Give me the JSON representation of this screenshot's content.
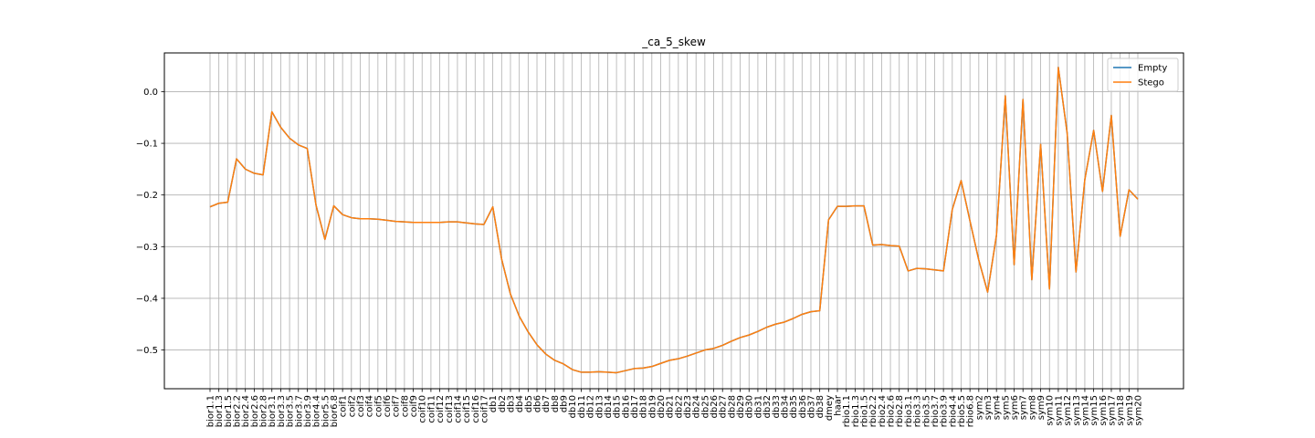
{
  "chart_data": {
    "type": "line",
    "title": "_ca_5_skew",
    "xlabel": "",
    "ylabel": "",
    "ylim": [
      -0.575,
      0.075
    ],
    "yticks": [
      0.0,
      -0.1,
      -0.2,
      -0.3,
      -0.4,
      -0.5
    ],
    "ytick_labels": [
      "0.0",
      "−0.1",
      "−0.2",
      "−0.3",
      "−0.4",
      "−0.5"
    ],
    "grid": true,
    "legend": "top-right",
    "categories": [
      "bior1.1",
      "bior1.3",
      "bior1.5",
      "bior2.2",
      "bior2.4",
      "bior2.6",
      "bior2.8",
      "bior3.1",
      "bior3.3",
      "bior3.5",
      "bior3.7",
      "bior3.9",
      "bior4.4",
      "bior5.5",
      "bior6.8",
      "coif1",
      "coif2",
      "coif3",
      "coif4",
      "coif5",
      "coif6",
      "coif7",
      "coif8",
      "coif9",
      "coif10",
      "coif11",
      "coif12",
      "coif13",
      "coif14",
      "coif15",
      "coif16",
      "coif17",
      "db1",
      "db2",
      "db3",
      "db4",
      "db5",
      "db6",
      "db7",
      "db8",
      "db9",
      "db10",
      "db11",
      "db12",
      "db13",
      "db14",
      "db15",
      "db16",
      "db17",
      "db18",
      "db19",
      "db20",
      "db21",
      "db22",
      "db23",
      "db24",
      "db25",
      "db26",
      "db27",
      "db28",
      "db29",
      "db30",
      "db31",
      "db32",
      "db33",
      "db34",
      "db35",
      "db36",
      "db37",
      "db38",
      "dmey",
      "haar",
      "rbio1.1",
      "rbio1.3",
      "rbio1.5",
      "rbio2.2",
      "rbio2.4",
      "rbio2.6",
      "rbio2.8",
      "rbio3.1",
      "rbio3.3",
      "rbio3.5",
      "rbio3.7",
      "rbio3.9",
      "rbio4.4",
      "rbio5.5",
      "rbio6.8",
      "sym2",
      "sym3",
      "sym4",
      "sym5",
      "sym6",
      "sym7",
      "sym8",
      "sym9",
      "sym10",
      "sym11",
      "sym12",
      "sym13",
      "sym14",
      "sym15",
      "sym16",
      "sym17",
      "sym18",
      "sym19",
      "sym20"
    ],
    "series": [
      {
        "name": "Empty",
        "color": "#1f77b4",
        "values": [
          -0.223,
          -0.216,
          -0.214,
          -0.13,
          -0.15,
          -0.158,
          -0.161,
          -0.039,
          -0.069,
          -0.09,
          -0.103,
          -0.11,
          -0.22,
          -0.286,
          -0.221,
          -0.238,
          -0.244,
          -0.246,
          -0.246,
          -0.247,
          -0.249,
          -0.251,
          -0.252,
          -0.253,
          -0.253,
          -0.253,
          -0.253,
          -0.252,
          -0.252,
          -0.254,
          -0.256,
          -0.257,
          -0.223,
          -0.324,
          -0.392,
          -0.435,
          -0.465,
          -0.49,
          -0.508,
          -0.52,
          -0.527,
          -0.538,
          -0.543,
          -0.543,
          -0.542,
          -0.543,
          -0.544,
          -0.54,
          -0.536,
          -0.535,
          -0.532,
          -0.526,
          -0.52,
          -0.517,
          -0.512,
          -0.506,
          -0.5,
          -0.497,
          -0.491,
          -0.483,
          -0.476,
          -0.471,
          -0.464,
          -0.456,
          -0.45,
          -0.446,
          -0.439,
          -0.431,
          -0.426,
          -0.424,
          -0.248,
          -0.222,
          -0.222,
          -0.221,
          -0.221,
          -0.297,
          -0.296,
          -0.298,
          -0.299,
          -0.347,
          -0.342,
          -0.343,
          -0.345,
          -0.347,
          -0.228,
          -0.172,
          -0.25,
          -0.326,
          -0.388,
          -0.278,
          -0.008,
          -0.335,
          -0.015,
          -0.364,
          -0.102,
          -0.382,
          0.047,
          -0.08,
          -0.349,
          -0.17,
          -0.075,
          -0.193,
          -0.046,
          -0.28,
          -0.19,
          -0.208
        ]
      },
      {
        "name": "Stego",
        "color": "#ff7f0e",
        "values": [
          -0.223,
          -0.216,
          -0.214,
          -0.13,
          -0.15,
          -0.158,
          -0.161,
          -0.039,
          -0.069,
          -0.09,
          -0.103,
          -0.11,
          -0.22,
          -0.286,
          -0.221,
          -0.238,
          -0.244,
          -0.246,
          -0.246,
          -0.247,
          -0.249,
          -0.251,
          -0.252,
          -0.253,
          -0.253,
          -0.253,
          -0.253,
          -0.252,
          -0.252,
          -0.254,
          -0.256,
          -0.257,
          -0.223,
          -0.324,
          -0.392,
          -0.435,
          -0.465,
          -0.49,
          -0.508,
          -0.52,
          -0.527,
          -0.538,
          -0.543,
          -0.543,
          -0.542,
          -0.543,
          -0.544,
          -0.54,
          -0.536,
          -0.535,
          -0.532,
          -0.526,
          -0.52,
          -0.517,
          -0.512,
          -0.506,
          -0.5,
          -0.497,
          -0.491,
          -0.483,
          -0.476,
          -0.471,
          -0.464,
          -0.456,
          -0.45,
          -0.446,
          -0.439,
          -0.431,
          -0.426,
          -0.424,
          -0.248,
          -0.222,
          -0.222,
          -0.221,
          -0.221,
          -0.297,
          -0.296,
          -0.298,
          -0.299,
          -0.347,
          -0.342,
          -0.343,
          -0.345,
          -0.347,
          -0.228,
          -0.172,
          -0.25,
          -0.326,
          -0.388,
          -0.278,
          -0.008,
          -0.335,
          -0.015,
          -0.364,
          -0.102,
          -0.382,
          0.047,
          -0.08,
          -0.349,
          -0.17,
          -0.075,
          -0.193,
          -0.046,
          -0.28,
          -0.19,
          -0.208
        ]
      }
    ]
  }
}
